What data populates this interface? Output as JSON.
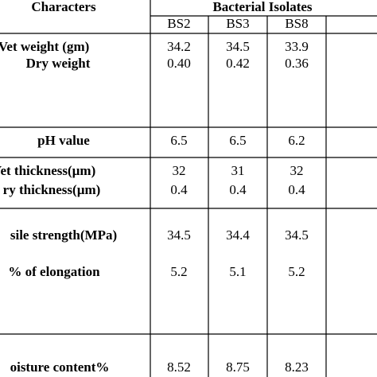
{
  "header": {
    "characters": "Characters",
    "group": "Bacterial Isolates",
    "columns": [
      "BS2",
      "BS3",
      "BS8"
    ]
  },
  "blocks": [
    {
      "rows": [
        {
          "label": "Vet weight (gm)",
          "values": [
            "34.2",
            "34.5",
            "33.9"
          ]
        },
        {
          "label": "Dry weight",
          "values": [
            "0.40",
            "0.42",
            "0.36"
          ]
        }
      ]
    },
    {
      "rows": [
        {
          "label": "pH value",
          "values": [
            "6.5",
            "6.5",
            "6.2"
          ]
        }
      ]
    },
    {
      "rows": [
        {
          "label": "Vet thickness(µm)",
          "values": [
            "32",
            "31",
            "32"
          ]
        },
        {
          "label": "ry thickness(µm)",
          "values": [
            "0.4",
            "0.4",
            "0.4"
          ]
        }
      ]
    },
    {
      "rows": [
        {
          "label": "sile strength(MPa)",
          "values": [
            "34.5",
            "34.4",
            "34.5"
          ]
        },
        {
          "label": "% of elongation",
          "values": [
            "5.2",
            "5.1",
            "5.2"
          ]
        }
      ]
    },
    {
      "rows": [
        {
          "label": "oisture content%",
          "values": [
            "8.52",
            "8.75",
            "8.23"
          ]
        }
      ]
    }
  ]
}
